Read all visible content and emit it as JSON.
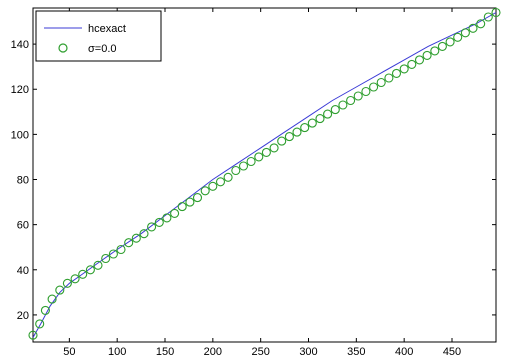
{
  "chart_data": {
    "type": "line",
    "title": "",
    "xlabel": "",
    "ylabel": "",
    "xlim": [
      12,
      496
    ],
    "ylim": [
      8,
      156
    ],
    "grid": false,
    "legend_placement": "top-left",
    "xticks": [
      50,
      100,
      150,
      200,
      250,
      300,
      350,
      400,
      450
    ],
    "yticks": [
      20,
      40,
      60,
      80,
      100,
      120,
      140
    ],
    "series": [
      {
        "name": "hcexact",
        "style": "line",
        "color": "#3b3bd6",
        "x": [
          12,
          20,
          30,
          40,
          50,
          60,
          80,
          100,
          125,
          150,
          175,
          200,
          225,
          250,
          275,
          300,
          325,
          350,
          375,
          400,
          425,
          450,
          475,
          496
        ],
        "y": [
          10,
          16,
          24,
          30,
          34,
          37,
          43,
          49,
          56,
          64,
          72,
          80,
          87,
          94,
          101,
          108,
          115,
          121,
          127,
          133,
          139,
          144,
          149,
          154
        ]
      },
      {
        "name": "σ=0.0",
        "style": "marker",
        "marker": "circle",
        "color": "#2e9e2e",
        "x": [
          12,
          19,
          25,
          32,
          40,
          48,
          56,
          64,
          72,
          80,
          88,
          96,
          104,
          112,
          120,
          128,
          136,
          144,
          152,
          160,
          168,
          176,
          184,
          192,
          200,
          208,
          216,
          224,
          232,
          240,
          248,
          256,
          264,
          272,
          280,
          288,
          296,
          304,
          312,
          320,
          328,
          336,
          344,
          352,
          360,
          368,
          376,
          384,
          392,
          400,
          408,
          416,
          424,
          432,
          440,
          448,
          456,
          464,
          472,
          480,
          488,
          496
        ],
        "y": [
          11,
          16,
          22,
          27,
          31,
          34,
          36,
          38,
          40,
          42,
          45,
          47,
          49,
          52,
          54,
          56,
          59,
          61,
          63,
          65,
          68,
          70,
          72,
          75,
          77,
          79,
          81,
          84,
          86,
          88,
          90,
          92,
          94,
          97,
          99,
          101,
          103,
          105,
          107,
          109,
          111,
          113,
          115,
          117,
          119,
          121,
          123,
          125,
          127,
          129,
          131,
          133,
          135,
          137,
          139,
          141,
          143,
          145,
          147,
          149,
          152,
          154
        ]
      }
    ]
  }
}
